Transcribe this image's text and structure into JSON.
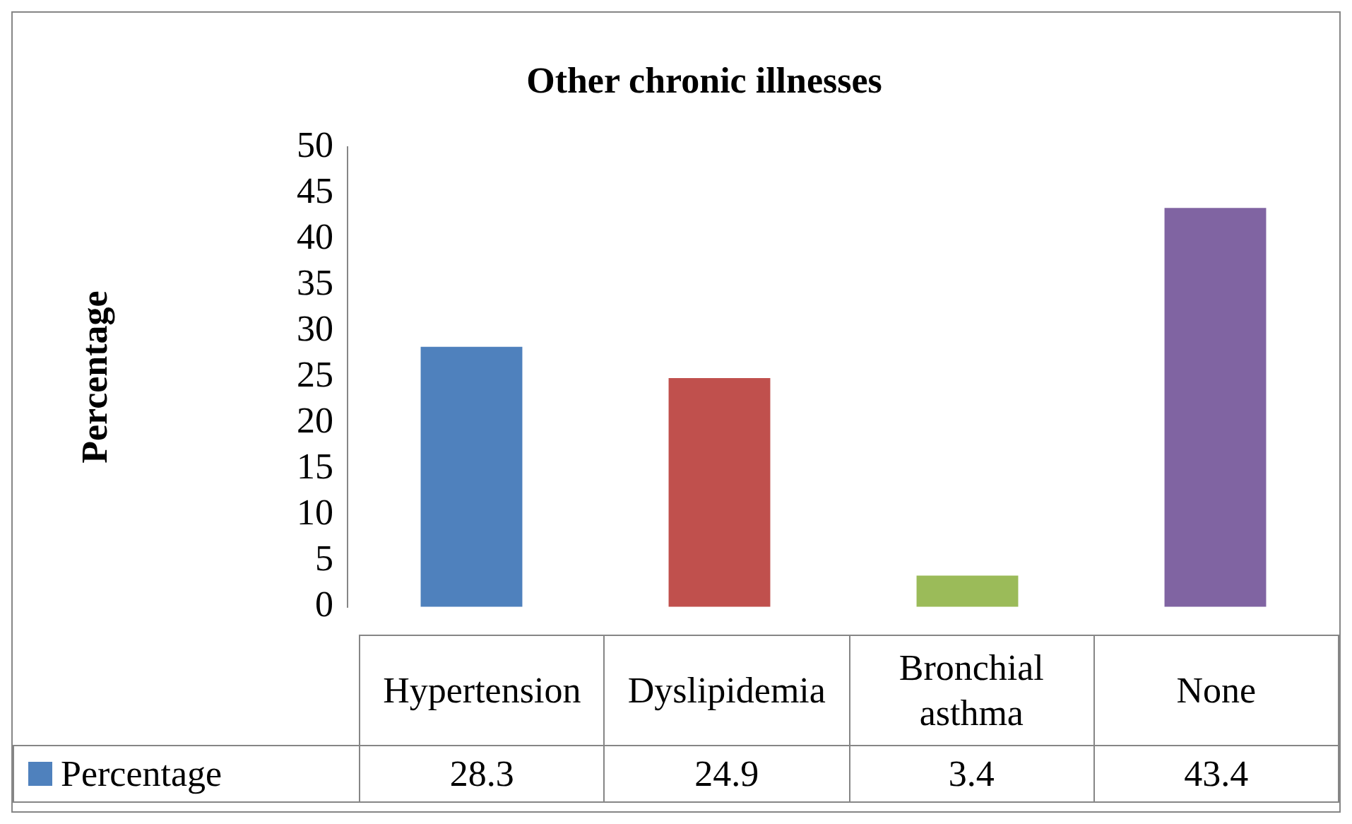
{
  "chart_data": {
    "type": "bar",
    "title": "Other chronic illnesses",
    "ylabel": "Percentage",
    "categories": [
      "Hypertension",
      "Dyslipidemia",
      "Bronchial asthma",
      "None"
    ],
    "series": [
      {
        "name": "Percentage",
        "colors": [
          "#4f81bd",
          "#c0504d",
          "#9bbb59",
          "#8064a2"
        ],
        "values": [
          28.3,
          24.9,
          3.4,
          43.4
        ]
      }
    ],
    "ylim": [
      0,
      50
    ],
    "yticks": [
      0,
      5,
      10,
      15,
      20,
      25,
      30,
      35,
      40,
      45,
      50
    ],
    "grid": false,
    "legend": "bottom",
    "data_labels": true
  }
}
